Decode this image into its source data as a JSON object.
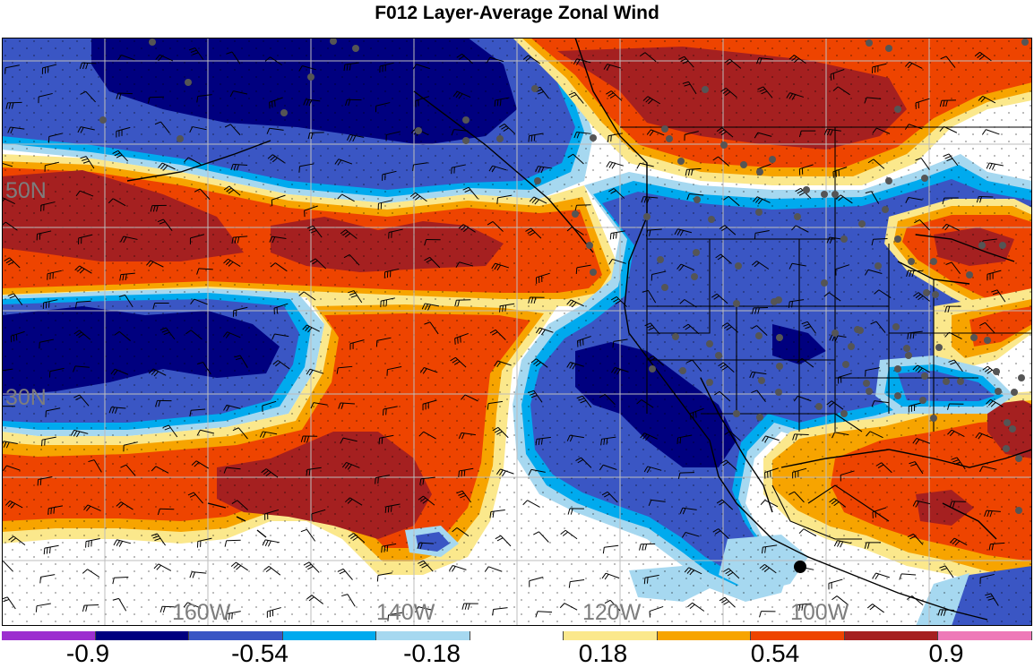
{
  "title": "F012 Layer-Average Zonal Wind",
  "lat_labels": [
    {
      "label": "50N",
      "lat": 50
    },
    {
      "label": "30N",
      "lat": 30
    }
  ],
  "lon_labels": [
    {
      "label": "160W",
      "lon": -160
    },
    {
      "label": "140W",
      "lon": -140
    },
    {
      "label": "120W",
      "lon": -120
    },
    {
      "label": "100W",
      "lon": -100
    }
  ],
  "colorbar": {
    "colors": [
      "#9c2fcf",
      "#00007f",
      "#3a56c4",
      "#00aaee",
      "#a6d8f0",
      "#ffffff",
      "#fbe88c",
      "#f7a400",
      "#ee4400",
      "#a52020",
      "#ee7ab8"
    ],
    "tick_labels": [
      "-0.9",
      "-0.54",
      "-0.18",
      "0.18",
      "0.54",
      "0.9"
    ]
  },
  "palette": {
    "strong_negative": "#00007f",
    "negative": "#3a56c4",
    "weak_negative": "#00aaee",
    "near_zero_neg": "#a6d8f0",
    "near_zero_pos": "#fbe88c",
    "weak_positive": "#f7a400",
    "positive": "#ee4400",
    "strong_positive": "#a52020",
    "station": "#555555",
    "marker": "#000000"
  }
}
